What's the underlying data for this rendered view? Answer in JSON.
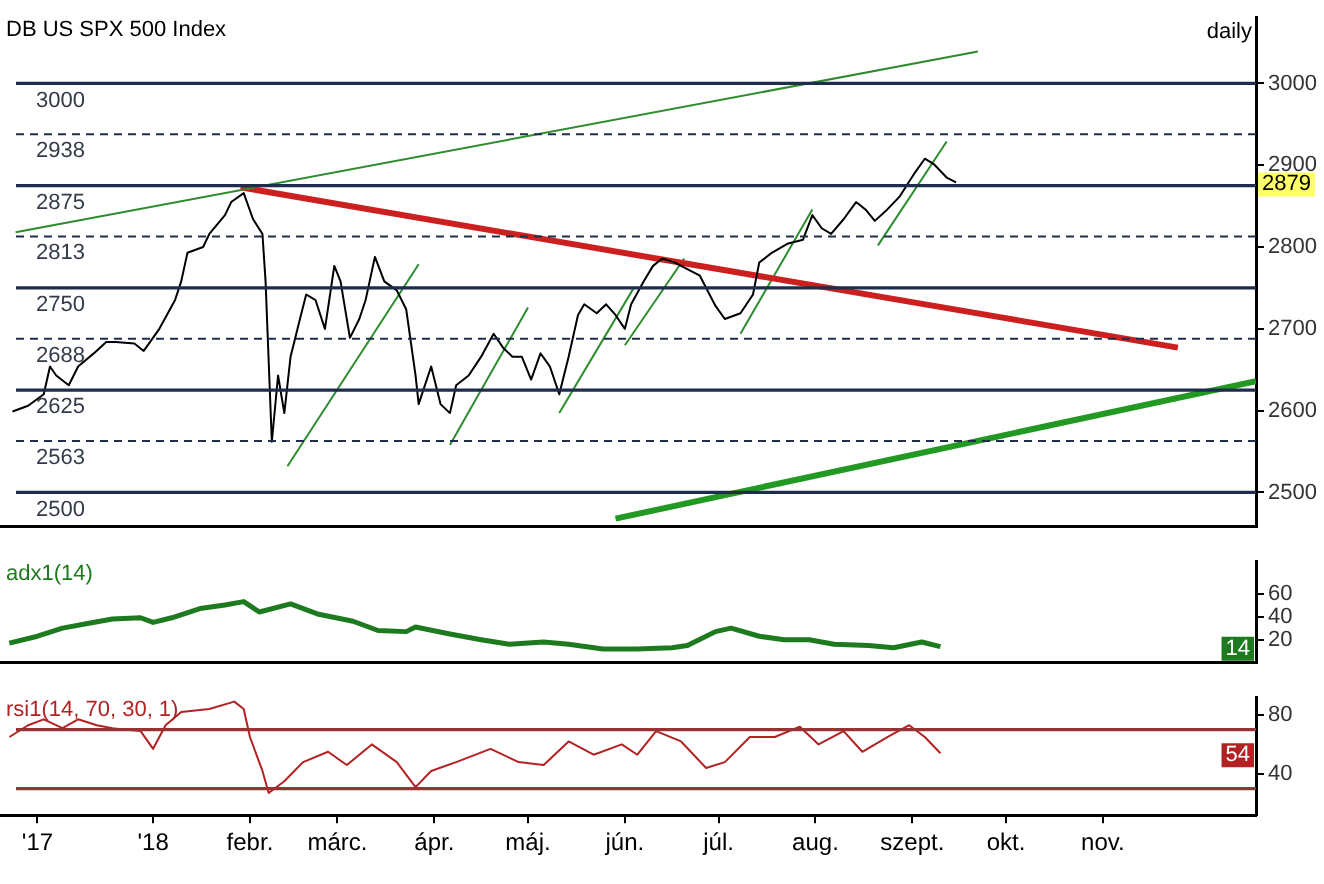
{
  "chart_data": [
    {
      "type": "line",
      "title": "DB US SPX 500 Index",
      "marker": "none",
      "tick_labels": "y",
      "xlim": [
        "2017-11-13",
        "2018-12-20"
      ],
      "ylim": [
        2458,
        3081
      ],
      "yticks": [
        2500,
        2600,
        2700,
        2800,
        2900,
        3000
      ],
      "x": [
        "2017-11-17",
        "2017-11-22",
        "2017-11-27",
        "2017-11-29",
        "2017-12-01",
        "2017-12-05",
        "2017-12-08",
        "2017-12-13",
        "2017-12-17",
        "2017-12-20",
        "2017-12-26",
        "2017-12-29",
        "2018-01-03",
        "2018-01-08",
        "2018-01-10",
        "2018-01-12",
        "2018-01-17",
        "2018-01-19",
        "2018-01-24",
        "2018-01-26",
        "2018-01-30",
        "2018-02-02",
        "2018-02-05",
        "2018-02-06",
        "2018-02-08",
        "2018-02-10",
        "2018-02-12",
        "2018-02-14",
        "2018-02-17",
        "2018-02-19",
        "2018-02-22",
        "2018-02-25",
        "2018-02-28",
        "2018-03-02",
        "2018-03-05",
        "2018-03-08",
        "2018-03-10",
        "2018-03-13",
        "2018-03-16",
        "2018-03-20",
        "2018-03-23",
        "2018-03-26",
        "2018-03-27",
        "2018-03-31",
        "2018-04-03",
        "2018-04-06",
        "2018-04-08",
        "2018-04-12",
        "2018-04-16",
        "2018-04-20",
        "2018-04-23",
        "2018-04-26",
        "2018-04-29",
        "2018-05-02",
        "2018-05-05",
        "2018-05-08",
        "2018-05-11",
        "2018-05-14",
        "2018-05-17",
        "2018-05-19",
        "2018-05-23",
        "2018-05-26",
        "2018-05-29",
        "2018-06-01",
        "2018-06-03",
        "2018-06-07",
        "2018-06-10",
        "2018-06-13",
        "2018-06-17",
        "2018-06-25",
        "2018-06-30",
        "2018-07-03",
        "2018-07-08",
        "2018-07-12",
        "2018-07-14",
        "2018-07-18",
        "2018-07-23",
        "2018-07-28",
        "2018-07-31",
        "2018-08-03",
        "2018-08-06",
        "2018-08-10",
        "2018-08-14",
        "2018-08-17",
        "2018-08-20",
        "2018-08-24",
        "2018-08-28",
        "2018-09-02",
        "2018-09-05",
        "2018-09-08",
        "2018-09-12",
        "2018-09-15"
      ],
      "series": [
        {
          "color": "#000000",
          "values": [
            2599,
            2606,
            2620,
            2654,
            2643,
            2631,
            2654,
            2670,
            2684,
            2684,
            2682,
            2673,
            2700,
            2735,
            2758,
            2793,
            2800,
            2816,
            2839,
            2855,
            2866,
            2834,
            2816,
            2758,
            2562,
            2643,
            2597,
            2666,
            2712,
            2742,
            2735,
            2700,
            2777,
            2758,
            2689,
            2712,
            2735,
            2788,
            2758,
            2747,
            2724,
            2643,
            2608,
            2654,
            2608,
            2597,
            2631,
            2643,
            2666,
            2694,
            2677,
            2666,
            2666,
            2638,
            2670,
            2654,
            2620,
            2666,
            2717,
            2730,
            2719,
            2730,
            2717,
            2700,
            2730,
            2758,
            2777,
            2786,
            2781,
            2765,
            2728,
            2712,
            2719,
            2742,
            2781,
            2793,
            2804,
            2809,
            2839,
            2823,
            2816,
            2834,
            2855,
            2846,
            2832,
            2846,
            2862,
            2892,
            2908,
            2901,
            2885,
            2879
          ]
        },
        {
          "color": "#2e8b2e",
          "x": [
            "2017-11-18",
            "2018-09-22"
          ],
          "values": [
            2818,
            3039
          ]
        },
        {
          "color": "#cc2020",
          "x": [
            "2018-01-29",
            "2018-11-25"
          ],
          "values": [
            2873,
            2677
          ]
        },
        {
          "color": "#229922",
          "x": [
            "2018-05-29",
            "2018-12-20"
          ],
          "values": [
            2468,
            2636
          ]
        },
        {
          "color": "#2e8b2e",
          "x": [
            "2018-02-13",
            "2018-03-27"
          ],
          "values": [
            2532,
            2779
          ]
        },
        {
          "color": "#2e8b2e",
          "x": [
            "2018-04-06",
            "2018-05-01"
          ],
          "values": [
            2558,
            2726
          ]
        },
        {
          "color": "#2e8b2e",
          "x": [
            "2018-05-11",
            "2018-06-04"
          ],
          "values": [
            2597,
            2751
          ]
        },
        {
          "color": "#2e8b2e",
          "x": [
            "2018-06-01",
            "2018-06-20"
          ],
          "values": [
            2680,
            2786
          ]
        },
        {
          "color": "#2e8b2e",
          "x": [
            "2018-07-08",
            "2018-07-31"
          ],
          "values": [
            2694,
            2846
          ]
        },
        {
          "color": "#2e8b2e",
          "x": [
            "2018-08-21",
            "2018-09-12"
          ],
          "values": [
            2802,
            2929
          ]
        }
      ],
      "ref_lines": [
        {
          "axis": "y",
          "value": 3000,
          "label": "3000",
          "color": "#1f2d4d",
          "line_style": "solid"
        },
        {
          "axis": "y",
          "value": 2938,
          "label": "2938",
          "color": "#1f2d4d",
          "line_style": "dashed"
        },
        {
          "axis": "y",
          "value": 2875,
          "label": "2875",
          "color": "#1f2d4d",
          "line_style": "solid"
        },
        {
          "axis": "y",
          "value": 2813,
          "label": "2813",
          "color": "#1f2d4d",
          "line_style": "dashed"
        },
        {
          "axis": "y",
          "value": 2750,
          "label": "2750",
          "color": "#1f2d4d",
          "line_style": "solid"
        },
        {
          "axis": "y",
          "value": 2688,
          "label": "2688",
          "color": "#1f2d4d",
          "line_style": "dashed"
        },
        {
          "axis": "y",
          "value": 2625,
          "label": "2625",
          "color": "#1f2d4d",
          "line_style": "solid"
        },
        {
          "axis": "y",
          "value": 2563,
          "label": "2563",
          "color": "#1f2d4d",
          "line_style": "dashed"
        },
        {
          "axis": "y",
          "value": 2500,
          "label": "2500",
          "color": "#1f2d4d",
          "line_style": "solid"
        }
      ],
      "annotations": [
        "daily",
        "2879"
      ]
    },
    {
      "type": "line",
      "title": "adx1(14)",
      "marker": "none",
      "tick_labels": "y",
      "xlim": [
        "2017-11-13",
        "2018-12-20"
      ],
      "ylim": [
        0,
        88
      ],
      "yticks": [
        20,
        40,
        60
      ],
      "x": [
        "2017-11-16",
        "2017-11-25",
        "2017-12-03",
        "2017-12-11",
        "2017-12-19",
        "2017-12-28",
        "2018-01-01",
        "2018-01-07",
        "2018-01-16",
        "2018-01-24",
        "2018-01-30",
        "2018-02-04",
        "2018-02-14",
        "2018-02-23",
        "2018-03-06",
        "2018-03-14",
        "2018-03-23",
        "2018-03-26",
        "2018-04-06",
        "2018-04-16",
        "2018-04-25",
        "2018-05-06",
        "2018-05-14",
        "2018-05-25",
        "2018-06-05",
        "2018-06-16",
        "2018-06-21",
        "2018-06-30",
        "2018-07-05",
        "2018-07-14",
        "2018-07-22",
        "2018-07-30",
        "2018-08-07",
        "2018-08-18",
        "2018-08-26",
        "2018-09-04",
        "2018-09-10"
      ],
      "series": [
        {
          "color": "#1e7a1e",
          "values": [
            17,
            23,
            30,
            34,
            38,
            39,
            35,
            39,
            47,
            50,
            53,
            44,
            51,
            42,
            36,
            28,
            27,
            31,
            25,
            20,
            16,
            18,
            16,
            12,
            12,
            13,
            15,
            27,
            30,
            23,
            20,
            20,
            16,
            15,
            13,
            18,
            14
          ]
        }
      ],
      "annotations": [
        "14"
      ]
    },
    {
      "type": "line",
      "title": "rsi1(14, 70, 30, 1)",
      "marker": "none",
      "xlim": [
        "2017-11-13",
        "2018-12-20"
      ],
      "ylim": [
        12,
        92
      ],
      "yticks": [
        40,
        80
      ],
      "xticks": [
        {
          "value": "2017-11-25",
          "label": "'17"
        },
        {
          "value": "2018-01-01",
          "label": "'18"
        },
        {
          "value": "2018-02-01",
          "label": "febr."
        },
        {
          "value": "2018-03-01",
          "label": "márc."
        },
        {
          "value": "2018-04-01",
          "label": "ápr."
        },
        {
          "value": "2018-05-01",
          "label": "máj."
        },
        {
          "value": "2018-06-01",
          "label": "jún."
        },
        {
          "value": "2018-07-01",
          "label": "júl."
        },
        {
          "value": "2018-08-01",
          "label": "aug."
        },
        {
          "value": "2018-09-01",
          "label": "szept."
        },
        {
          "value": "2018-10-01",
          "label": "okt."
        },
        {
          "value": "2018-11-01",
          "label": "nov."
        }
      ],
      "x": [
        "2017-11-16",
        "2017-11-22",
        "2017-11-27",
        "2017-12-03",
        "2017-12-08",
        "2017-12-14",
        "2017-12-19",
        "2017-12-28",
        "2018-01-01",
        "2018-01-05",
        "2018-01-10",
        "2018-01-19",
        "2018-01-27",
        "2018-01-30",
        "2018-02-01",
        "2018-02-05",
        "2018-02-07",
        "2018-02-12",
        "2018-02-18",
        "2018-02-26",
        "2018-03-04",
        "2018-03-12",
        "2018-03-20",
        "2018-03-26",
        "2018-03-31",
        "2018-04-08",
        "2018-04-19",
        "2018-04-28",
        "2018-05-06",
        "2018-05-14",
        "2018-05-22",
        "2018-05-31",
        "2018-06-05",
        "2018-06-11",
        "2018-06-19",
        "2018-06-27",
        "2018-07-03",
        "2018-07-11",
        "2018-07-19",
        "2018-07-27",
        "2018-08-02",
        "2018-08-10",
        "2018-08-16",
        "2018-08-24",
        "2018-08-31",
        "2018-09-05",
        "2018-09-10"
      ],
      "series": [
        {
          "color": "#b22222",
          "values": [
            65,
            73,
            77,
            71,
            77,
            73,
            71,
            69,
            57,
            73,
            82,
            84,
            89,
            84,
            65,
            42,
            27,
            35,
            48,
            55,
            46,
            60,
            48,
            31,
            42,
            48,
            57,
            48,
            46,
            62,
            53,
            60,
            53,
            69,
            62,
            44,
            48,
            65,
            65,
            72,
            60,
            69,
            55,
            65,
            73,
            65,
            54
          ]
        }
      ],
      "ref_lines": [
        {
          "axis": "y",
          "value": 70,
          "color": "#993333",
          "line_style": "solid"
        },
        {
          "axis": "y",
          "value": 30,
          "color": "#993333",
          "line_style": "solid"
        }
      ],
      "annotations": [
        "54"
      ]
    }
  ]
}
